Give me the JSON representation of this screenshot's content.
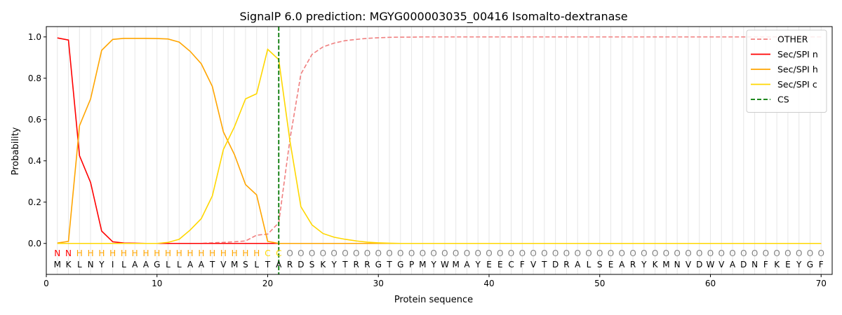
{
  "chart_data": {
    "type": "line",
    "title": "SignalP 6.0 prediction: MGYG000003035_00416 Isomalto-dextranase",
    "xlabel": "Protein sequence",
    "ylabel": "Probability",
    "xlim": [
      0,
      71
    ],
    "ylim": [
      -0.15,
      1.05
    ],
    "xticks": [
      0,
      10,
      20,
      30,
      40,
      50,
      60,
      70
    ],
    "yticks": [
      0.0,
      0.2,
      0.4,
      0.6,
      0.8,
      1.0
    ],
    "grid": "vertical lines at every residue",
    "legend": "top-right",
    "sequence": [
      "M",
      "K",
      "L",
      "N",
      "Y",
      "I",
      "L",
      "A",
      "A",
      "G",
      "L",
      "L",
      "A",
      "A",
      "T",
      "V",
      "M",
      "S",
      "L",
      "T",
      "A",
      "R",
      "D",
      "S",
      "K",
      "Y",
      "T",
      "R",
      "R",
      "G",
      "T",
      "G",
      "P",
      "M",
      "Y",
      "W",
      "M",
      "A",
      "Y",
      "E",
      "E",
      "C",
      "F",
      "V",
      "T",
      "D",
      "R",
      "A",
      "L",
      "S",
      "E",
      "A",
      "R",
      "Y",
      "K",
      "M",
      "N",
      "V",
      "D",
      "W",
      "V",
      "A",
      "D",
      "N",
      "F",
      "K",
      "E",
      "Y",
      "G",
      "F"
    ],
    "labels": [
      "N",
      "N",
      "H",
      "H",
      "H",
      "H",
      "H",
      "H",
      "H",
      "H",
      "H",
      "H",
      "H",
      "H",
      "H",
      "H",
      "H",
      "H",
      "H",
      "C",
      "C",
      "O",
      "O",
      "O",
      "O",
      "O",
      "O",
      "O",
      "O",
      "O",
      "O",
      "O",
      "O",
      "O",
      "O",
      "O",
      "O",
      "O",
      "O",
      "O",
      "O",
      "O",
      "O",
      "O",
      "O",
      "O",
      "O",
      "O",
      "O",
      "O",
      "O",
      "O",
      "O",
      "O",
      "O",
      "O",
      "O",
      "O",
      "O",
      "O",
      "O",
      "O",
      "O",
      "O",
      "O",
      "O",
      "O",
      "O",
      "O",
      "O"
    ],
    "label_colors": {
      "N": "#ff0000",
      "H": "#ffa500",
      "C": "#ffd700",
      "O": "#808080"
    },
    "cs_position": 21,
    "series": [
      {
        "name": "OTHER",
        "color": "#f08080",
        "dash": "dashed",
        "values": [
          0.0,
          0.0,
          0.0,
          0.0,
          0.0,
          0.0,
          0.0,
          0.0,
          0.0,
          0.0,
          0.0,
          0.0,
          0.0,
          0.0,
          0.003,
          0.005,
          0.008,
          0.012,
          0.04,
          0.045,
          0.1,
          0.5,
          0.82,
          0.915,
          0.952,
          0.97,
          0.982,
          0.988,
          0.993,
          0.996,
          0.998,
          0.999,
          0.999,
          1.0,
          1.0,
          1.0,
          1.0,
          1.0,
          1.0,
          1.0,
          1.0,
          1.0,
          1.0,
          1.0,
          1.0,
          1.0,
          1.0,
          1.0,
          1.0,
          1.0,
          1.0,
          1.0,
          1.0,
          1.0,
          1.0,
          1.0,
          1.0,
          1.0,
          1.0,
          1.0,
          1.0,
          1.0,
          1.0,
          1.0,
          1.0,
          1.0,
          1.0,
          1.0,
          1.0,
          1.0
        ]
      },
      {
        "name": "Sec/SPI n",
        "color": "#ff0000",
        "dash": "solid",
        "values": [
          0.995,
          0.985,
          0.425,
          0.295,
          0.06,
          0.008,
          0.002,
          0.001,
          0.0,
          0.0,
          0.0,
          0.0,
          0.0,
          0.0,
          0.0,
          0.0,
          0.0,
          0.0,
          0.0,
          0.0,
          0.0,
          0.0,
          0.0,
          0.0,
          0.0,
          0.0,
          0.0,
          0.0,
          0.0,
          0.0,
          0.0,
          0.0,
          0.0,
          0.0,
          0.0,
          0.0,
          0.0,
          0.0,
          0.0,
          0.0,
          0.0,
          0.0,
          0.0,
          0.0,
          0.0,
          0.0,
          0.0,
          0.0,
          0.0,
          0.0,
          0.0,
          0.0,
          0.0,
          0.0,
          0.0,
          0.0,
          0.0,
          0.0,
          0.0,
          0.0,
          0.0,
          0.0,
          0.0,
          0.0,
          0.0,
          0.0,
          0.0,
          0.0,
          0.0,
          0.0
        ]
      },
      {
        "name": "Sec/SPI h",
        "color": "#ffa500",
        "dash": "solid",
        "values": [
          0.002,
          0.01,
          0.57,
          0.7,
          0.935,
          0.988,
          0.993,
          0.993,
          0.993,
          0.992,
          0.99,
          0.975,
          0.93,
          0.87,
          0.76,
          0.54,
          0.43,
          0.285,
          0.235,
          0.01,
          0.0,
          0.0,
          0.0,
          0.0,
          0.0,
          0.0,
          0.0,
          0.0,
          0.0,
          0.0,
          0.0,
          0.0,
          0.0,
          0.0,
          0.0,
          0.0,
          0.0,
          0.0,
          0.0,
          0.0,
          0.0,
          0.0,
          0.0,
          0.0,
          0.0,
          0.0,
          0.0,
          0.0,
          0.0,
          0.0,
          0.0,
          0.0,
          0.0,
          0.0,
          0.0,
          0.0,
          0.0,
          0.0,
          0.0,
          0.0,
          0.0,
          0.0,
          0.0,
          0.0,
          0.0,
          0.0,
          0.0,
          0.0,
          0.0,
          0.0
        ]
      },
      {
        "name": "Sec/SPI c",
        "color": "#ffd700",
        "dash": "solid",
        "values": [
          0.0,
          0.0,
          0.0,
          0.0,
          0.0,
          0.0,
          0.0,
          0.0,
          0.0,
          0.0,
          0.005,
          0.02,
          0.065,
          0.12,
          0.23,
          0.455,
          0.565,
          0.7,
          0.725,
          0.94,
          0.89,
          0.5,
          0.178,
          0.09,
          0.048,
          0.03,
          0.02,
          0.012,
          0.006,
          0.003,
          0.001,
          0.0,
          0.0,
          0.0,
          0.0,
          0.0,
          0.0,
          0.0,
          0.0,
          0.0,
          0.0,
          0.0,
          0.0,
          0.0,
          0.0,
          0.0,
          0.0,
          0.0,
          0.0,
          0.0,
          0.0,
          0.0,
          0.0,
          0.0,
          0.0,
          0.0,
          0.0,
          0.0,
          0.0,
          0.0,
          0.0,
          0.0,
          0.0,
          0.0,
          0.0,
          0.0,
          0.0,
          0.0,
          0.0,
          0.0
        ]
      }
    ],
    "legend_entries": [
      {
        "name": "OTHER",
        "color": "#f08080",
        "dash": "dashed"
      },
      {
        "name": "Sec/SPI n",
        "color": "#ff0000",
        "dash": "solid"
      },
      {
        "name": "Sec/SPI h",
        "color": "#ffa500",
        "dash": "solid"
      },
      {
        "name": "Sec/SPI c",
        "color": "#ffd700",
        "dash": "solid"
      },
      {
        "name": "CS",
        "color": "#007700",
        "dash": "dashed"
      }
    ]
  }
}
